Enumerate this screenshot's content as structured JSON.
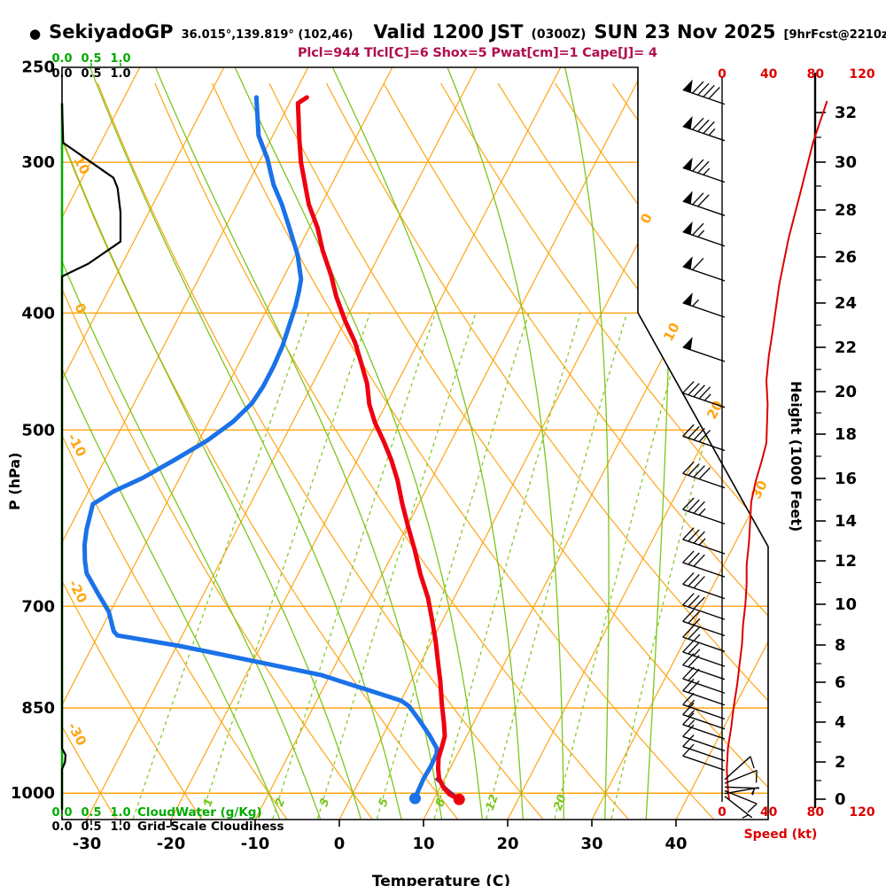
{
  "header": {
    "bullet": "●",
    "station": "SekiyadoGP",
    "coords": "36.015°,139.819° (102,46)",
    "valid": "Valid 1200 JST",
    "valid_z": "(0300Z)",
    "valid_date": "SUN 23 Nov 2025",
    "fcst_note": "[9hrFcst@2210z]",
    "params": "Plcl=944 Tlcl[C]=6 Shox=5 Pwat[cm]=1 Cape[J]= 4"
  },
  "colors": {
    "grid_orange": "#ffa513",
    "grid_green": "#7cc51c",
    "cloud_green": "#00ab00",
    "temp_red": "#ee0011",
    "dew_blue": "#1b72e8",
    "speed_red": "#dd0000",
    "parcel_purple": "#6a1f7e",
    "params_magenta": "#b0104c",
    "black": "#000000"
  },
  "axes": {
    "pressure": {
      "title": "P (hPa)",
      "ticks": [
        250,
        300,
        400,
        500,
        700,
        850,
        1000
      ]
    },
    "temperature": {
      "title": "Temperature (C)",
      "ticks": [
        -30,
        -20,
        -10,
        0,
        10,
        20,
        30,
        40
      ]
    },
    "height": {
      "title": "Height (1000 Feet)",
      "ticks": [
        0,
        2,
        4,
        6,
        8,
        10,
        12,
        14,
        16,
        18,
        20,
        22,
        24,
        26,
        28,
        30,
        32
      ]
    },
    "speed": {
      "title": "Speed (kt)",
      "ticks": [
        0,
        40,
        80,
        120
      ]
    },
    "cloud_scale": {
      "tick_labels": [
        "0.0",
        "0.5",
        "1.0"
      ],
      "water_label": "CloudWater (g/Kg)",
      "cloudiness_label": "Grid-Scale Cloudiness"
    },
    "isotherm_labels": [
      0,
      10,
      20,
      30
    ],
    "dry_adiabat_labels": [
      10,
      0,
      -10,
      -20,
      -30
    ],
    "mixing_ratio_labels": [
      1,
      2,
      3,
      5,
      8,
      12,
      20
    ]
  },
  "chart_data": {
    "type": "skewt-log-p sounding",
    "pressure_range_hpa": [
      250,
      1050
    ],
    "temp_axis_range_c": [
      -35,
      45
    ],
    "isotherm_step_c": 10,
    "dry_adiabat_values_c": [
      -30,
      -20,
      -10,
      0,
      10,
      20,
      30,
      40,
      50,
      60,
      70,
      80,
      90
    ],
    "moist_adiabat_values_c": [
      -10,
      -5,
      0,
      5,
      10,
      15,
      20,
      25,
      30,
      35
    ],
    "mixing_ratio_values_gkg": [
      0.5,
      1,
      2,
      3,
      5,
      8,
      12,
      20,
      30
    ],
    "temperature_profile_p_t": [
      [
        265,
        -48.3
      ],
      [
        268,
        -49
      ],
      [
        288,
        -46.5
      ],
      [
        300,
        -45
      ],
      [
        325,
        -41.5
      ],
      [
        340,
        -39
      ],
      [
        355,
        -37
      ],
      [
        372,
        -34.5
      ],
      [
        388,
        -32.5
      ],
      [
        406,
        -30
      ],
      [
        423,
        -27.5
      ],
      [
        440,
        -25.5
      ],
      [
        458,
        -23.5
      ],
      [
        476,
        -22
      ],
      [
        493,
        -20.2
      ],
      [
        511,
        -18
      ],
      [
        529,
        -16
      ],
      [
        550,
        -14
      ],
      [
        575,
        -12
      ],
      [
        602,
        -9.8
      ],
      [
        629,
        -7.6
      ],
      [
        658,
        -5.5
      ],
      [
        689,
        -3.1
      ],
      [
        718,
        -1.3
      ],
      [
        747,
        0.4
      ],
      [
        778,
        2
      ],
      [
        808,
        3.5
      ],
      [
        842,
        5
      ],
      [
        875,
        6.5
      ],
      [
        897,
        7.4
      ],
      [
        915,
        7.7
      ],
      [
        935,
        8
      ],
      [
        954,
        8.6
      ],
      [
        972,
        9.3
      ],
      [
        989,
        10.4
      ],
      [
        1002,
        11.5
      ],
      [
        1012,
        13
      ]
    ],
    "dewpoint_profile_p_t": [
      [
        265,
        -54.3
      ],
      [
        285,
        -51.7
      ],
      [
        298,
        -49.2
      ],
      [
        313,
        -46.9
      ],
      [
        325,
        -44.7
      ],
      [
        339,
        -42.5
      ],
      [
        358,
        -39.7
      ],
      [
        375,
        -37.8
      ],
      [
        384,
        -37.3
      ],
      [
        395,
        -36.8
      ],
      [
        426,
        -35.9
      ],
      [
        443,
        -35.7
      ],
      [
        460,
        -35.7
      ],
      [
        475,
        -36
      ],
      [
        492,
        -37.1
      ],
      [
        510,
        -39
      ],
      [
        530,
        -41.8
      ],
      [
        548,
        -44.4
      ],
      [
        562,
        -47
      ],
      [
        576,
        -48.7
      ],
      [
        604,
        -47.9
      ],
      [
        622,
        -47.2
      ],
      [
        641,
        -46.2
      ],
      [
        657,
        -45.2
      ],
      [
        682,
        -42.7
      ],
      [
        707,
        -40.2
      ],
      [
        734,
        -38.4
      ],
      [
        740,
        -37.7
      ],
      [
        755,
        -29.7
      ],
      [
        776,
        -20.4
      ],
      [
        798,
        -11.1
      ],
      [
        823,
        -4.1
      ],
      [
        838,
        0
      ],
      [
        847,
        1.3
      ],
      [
        869,
        3.3
      ],
      [
        895,
        5.5
      ],
      [
        918,
        7.2
      ],
      [
        927,
        7.5
      ],
      [
        949,
        7.6
      ],
      [
        973,
        7.5
      ],
      [
        995,
        7.6
      ],
      [
        1010,
        7.7
      ]
    ],
    "parcel_line_p_t": [
      [
        1013,
        13.2
      ],
      [
        995,
        11.2
      ],
      [
        972,
        8.9
      ]
    ],
    "lcl": {
      "p_hpa": 944,
      "t_c": 6
    },
    "indices": {
      "shox": 5,
      "pwat_cm": 1,
      "cape_j": 4
    },
    "cloudiness_profile_p_frac": [
      [
        268,
        0
      ],
      [
        289,
        0.02
      ],
      [
        309,
        0.88
      ],
      [
        315,
        0.95
      ],
      [
        330,
        1.0
      ],
      [
        349,
        1.0
      ],
      [
        364,
        0.45
      ],
      [
        373,
        0
      ],
      [
        918,
        0
      ],
      [
        930,
        0.06
      ],
      [
        943,
        0.05
      ],
      [
        955,
        0
      ],
      [
        1032,
        0
      ]
    ],
    "cloudwater_profile_p_gkg": [
      [
        268,
        0
      ],
      [
        1032,
        0
      ]
    ],
    "wind_speed_profile_alt_kft_kt": [
      [
        32.5,
        90
      ],
      [
        30.8,
        78
      ],
      [
        28.7,
        67
      ],
      [
        26.8,
        57
      ],
      [
        24.8,
        49
      ],
      [
        22.6,
        43
      ],
      [
        21.6,
        40
      ],
      [
        20.5,
        38
      ],
      [
        19.4,
        39
      ],
      [
        17.6,
        38
      ],
      [
        16.8,
        34
      ],
      [
        15.9,
        29
      ],
      [
        14.9,
        25
      ],
      [
        13.9,
        24
      ],
      [
        12.9,
        23
      ],
      [
        11.8,
        21
      ],
      [
        10.9,
        21
      ],
      [
        10,
        20
      ],
      [
        9,
        18
      ],
      [
        8,
        17
      ],
      [
        7,
        15
      ],
      [
        5.9,
        13
      ],
      [
        4.8,
        10
      ],
      [
        3.8,
        8
      ],
      [
        2.7,
        5
      ],
      [
        1.6,
        4
      ],
      [
        0.5,
        5
      ],
      [
        0,
        6
      ]
    ],
    "wind_barbs_alt_kft_kt": [
      [
        32.4,
        90
      ],
      [
        30.9,
        85
      ],
      [
        29.2,
        75
      ],
      [
        27.8,
        70
      ],
      [
        26.5,
        65
      ],
      [
        25,
        60
      ],
      [
        23.4,
        55
      ],
      [
        21.4,
        50
      ],
      [
        19.3,
        45
      ],
      [
        17.3,
        40
      ],
      [
        15.6,
        40
      ],
      [
        13.9,
        35
      ],
      [
        12.4,
        35
      ],
      [
        11.3,
        30
      ],
      [
        10.3,
        30
      ],
      [
        9.3,
        30
      ],
      [
        8.5,
        25
      ],
      [
        7.7,
        25
      ],
      [
        6.9,
        25
      ],
      [
        6.2,
        20
      ],
      [
        5.5,
        20
      ],
      [
        4.9,
        20
      ],
      [
        4.2,
        15
      ],
      [
        3.7,
        15
      ],
      [
        3.2,
        15
      ],
      [
        2.6,
        10
      ],
      [
        2.1,
        10
      ],
      [
        1.6,
        10
      ]
    ],
    "surface_wind_barbs": [
      {
        "alt_kft": 1.1,
        "kt": 10,
        "dir_deg": -42
      },
      {
        "alt_kft": 0.9,
        "kt": 10,
        "dir_deg": -22
      },
      {
        "alt_kft": 0.7,
        "kt": 5,
        "dir_deg": 2
      },
      {
        "alt_kft": 0.5,
        "kt": 10,
        "dir_deg": 22
      },
      {
        "alt_kft": 0.35,
        "kt": 5,
        "dir_deg": -10
      },
      {
        "alt_kft": 0.2,
        "kt": 5,
        "dir_deg": 38
      }
    ]
  }
}
